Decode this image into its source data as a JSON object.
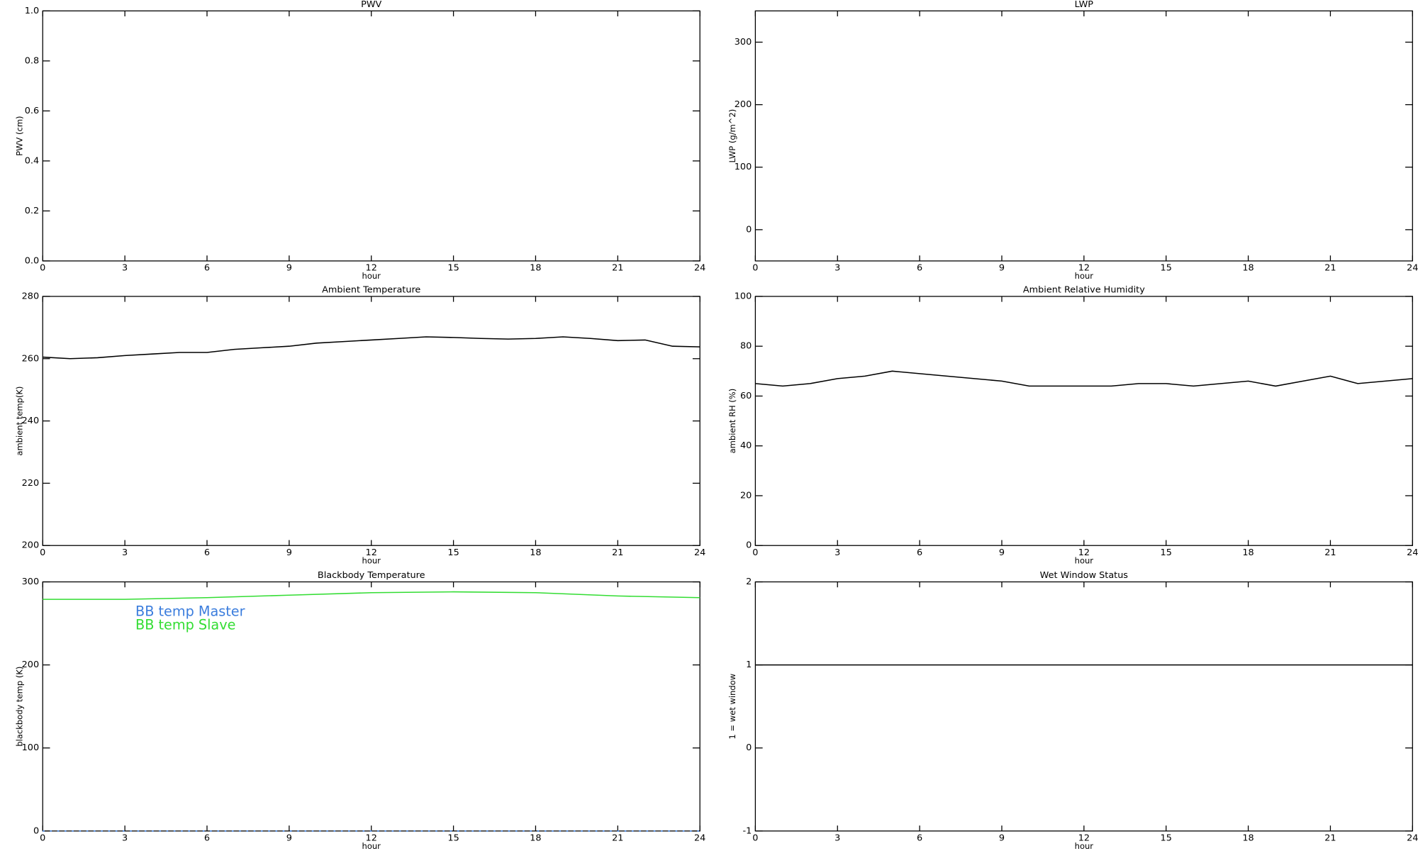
{
  "chart_data": [
    {
      "type": "line",
      "title": "PWV",
      "xlabel": "hour",
      "ylabel": "PWV (cm)",
      "xlim": [
        0,
        24
      ],
      "xticks": [
        0,
        3,
        6,
        9,
        12,
        15,
        18,
        21,
        24
      ],
      "ylim": [
        0,
        1
      ],
      "yticks": [
        {
          "value": 0,
          "label": "0.0"
        },
        0.2,
        0.4,
        0.6,
        0.8,
        {
          "value": 1,
          "label": "1.0"
        }
      ],
      "x": [],
      "series": []
    },
    {
      "type": "line",
      "title": "LWP",
      "xlabel": "hour",
      "ylabel": "LWP (g/m^2)",
      "xlim": [
        0,
        24
      ],
      "xticks": [
        0,
        3,
        6,
        9,
        12,
        15,
        18,
        21,
        24
      ],
      "ylim": [
        -50,
        350
      ],
      "yticks": [
        0,
        100,
        200,
        300
      ],
      "x": [],
      "series": []
    },
    {
      "type": "line",
      "title": "Ambient Temperature",
      "xlabel": "hour",
      "ylabel": "ambient temp(K)",
      "xlim": [
        0,
        24
      ],
      "xticks": [
        0,
        3,
        6,
        9,
        12,
        15,
        18,
        21,
        24
      ],
      "ylim": [
        200,
        280
      ],
      "yticks": [
        200,
        220,
        240,
        260,
        280
      ],
      "x": [
        0,
        1,
        2,
        3,
        4,
        5,
        6,
        7,
        8,
        9,
        10,
        11,
        12,
        13,
        14,
        15,
        16,
        17,
        18,
        19,
        20,
        21,
        22,
        23,
        24
      ],
      "series": [
        {
          "color": "#000000",
          "values": [
            260.5,
            260,
            260.3,
            261,
            261.5,
            262,
            262,
            263,
            263.5,
            264,
            265,
            265.5,
            266,
            266.5,
            267,
            266.8,
            266.5,
            266.3,
            266.5,
            267,
            266.5,
            265.8,
            266,
            264,
            263.8
          ]
        }
      ]
    },
    {
      "type": "line",
      "title": "Ambient Relative Humidity",
      "xlabel": "hour",
      "ylabel": "ambient RH (%)",
      "xlim": [
        0,
        24
      ],
      "xticks": [
        0,
        3,
        6,
        9,
        12,
        15,
        18,
        21,
        24
      ],
      "ylim": [
        0,
        100
      ],
      "yticks": [
        0,
        20,
        40,
        60,
        80,
        100
      ],
      "x": [
        0,
        1,
        2,
        3,
        4,
        5,
        6,
        7,
        8,
        9,
        10,
        11,
        12,
        13,
        14,
        15,
        16,
        17,
        18,
        19,
        20,
        21,
        22,
        23,
        24
      ],
      "series": [
        {
          "color": "#000000",
          "values": [
            65,
            64,
            65,
            67,
            68,
            70,
            69,
            68,
            67,
            66,
            64,
            64,
            64,
            64,
            65,
            65,
            64,
            65,
            66,
            64,
            66,
            68,
            65,
            66,
            67
          ]
        }
      ]
    },
    {
      "type": "line",
      "title": "Blackbody Temperature",
      "xlabel": "hour",
      "ylabel": "blackbody temp (K)",
      "xlim": [
        0,
        24
      ],
      "xticks": [
        0,
        3,
        6,
        9,
        12,
        15,
        18,
        21,
        24
      ],
      "ylim": [
        0,
        300
      ],
      "yticks": [
        0,
        100,
        200,
        300
      ],
      "x": [
        0,
        3,
        6,
        9,
        12,
        15,
        18,
        21,
        24
      ],
      "series": [
        {
          "name": "BB temp Master",
          "color": "#3b7ddd",
          "dashed": true,
          "values": [
            0,
            0,
            0,
            0,
            0,
            0,
            0,
            0,
            0
          ]
        },
        {
          "name": "BB temp Slave",
          "color": "#33dd33",
          "values": [
            279,
            279,
            281,
            284,
            287,
            288,
            287,
            283,
            281
          ]
        }
      ]
    },
    {
      "type": "line",
      "title": "Wet Window Status",
      "xlabel": "hour",
      "ylabel": "1 = wet window",
      "xlim": [
        0,
        24
      ],
      "xticks": [
        0,
        3,
        6,
        9,
        12,
        15,
        18,
        21,
        24
      ],
      "ylim": [
        -1,
        2
      ],
      "yticks": [
        -1,
        0,
        1,
        2
      ],
      "x": [
        0,
        24
      ],
      "series": [
        {
          "color": "#000000",
          "values": [
            1,
            1
          ]
        }
      ]
    }
  ]
}
